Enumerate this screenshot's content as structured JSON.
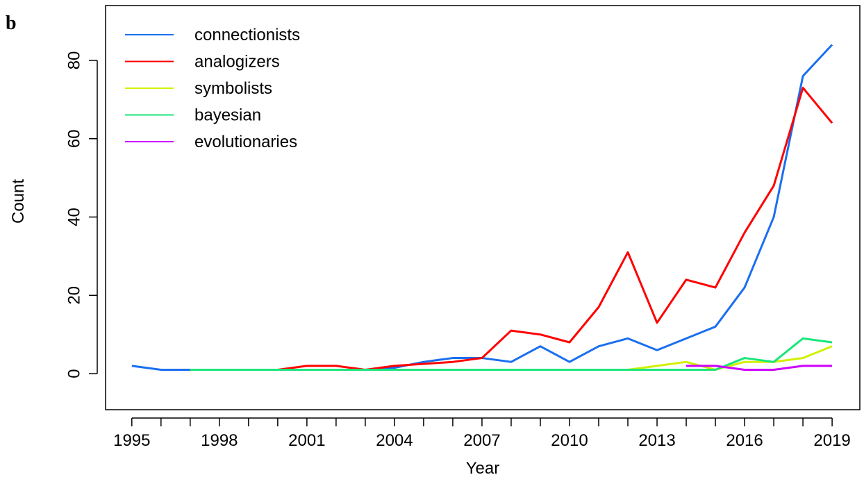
{
  "chart_data": {
    "type": "line",
    "panel_label": "b",
    "xlabel": "Year",
    "ylabel": "Count",
    "x": [
      1995,
      1996,
      1997,
      1998,
      1999,
      2000,
      2001,
      2002,
      2003,
      2004,
      2005,
      2006,
      2007,
      2008,
      2009,
      2010,
      2011,
      2012,
      2013,
      2014,
      2015,
      2016,
      2017,
      2018,
      2019
    ],
    "series": [
      {
        "name": "connectionists",
        "color": "#1a6ff0",
        "values": [
          2,
          1,
          1,
          1,
          1,
          1,
          1,
          1,
          1,
          1.5,
          3,
          4,
          4,
          3,
          7,
          3,
          7,
          9,
          6,
          9,
          12,
          22,
          40,
          76,
          84
        ]
      },
      {
        "name": "analogizers",
        "color": "#ff0000",
        "values": [
          null,
          null,
          null,
          null,
          null,
          1,
          2,
          2,
          1,
          2,
          2.5,
          3,
          4,
          11,
          10,
          8,
          17,
          31,
          13,
          24,
          22,
          36,
          48,
          73,
          64
        ]
      },
      {
        "name": "symbolists",
        "color": "#d2f000",
        "values": [
          null,
          null,
          1,
          1,
          1,
          1,
          1,
          1,
          1,
          1,
          1,
          1,
          1,
          1,
          1,
          1,
          1,
          1,
          2,
          3,
          1,
          3,
          3,
          4,
          7
        ]
      },
      {
        "name": "bayesian",
        "color": "#19e67a",
        "values": [
          null,
          null,
          1,
          1,
          1,
          1,
          1,
          1,
          1,
          1,
          1,
          1,
          1,
          1,
          1,
          1,
          1,
          1,
          1,
          1,
          1,
          4,
          3,
          9,
          8
        ]
      },
      {
        "name": "evolutionaries",
        "color": "#cc00ff",
        "values": [
          null,
          null,
          null,
          null,
          null,
          null,
          null,
          null,
          null,
          null,
          null,
          null,
          null,
          null,
          null,
          null,
          null,
          null,
          null,
          2,
          2,
          1,
          1,
          2,
          2
        ]
      }
    ],
    "xlim": [
      1994.1,
      2019.95
    ],
    "ylim": [
      -9.2,
      94.0
    ],
    "xticks": [
      1995,
      1998,
      2001,
      2004,
      2007,
      2010,
      2013,
      2016,
      2019
    ],
    "xminorticks": [
      1996,
      1997,
      1999,
      2000,
      2002,
      2003,
      2005,
      2006,
      2008,
      2009,
      2011,
      2012,
      2014,
      2015,
      2017,
      2018
    ],
    "yticks": [
      0,
      20,
      40,
      60,
      80
    ],
    "legend": "top-left"
  }
}
